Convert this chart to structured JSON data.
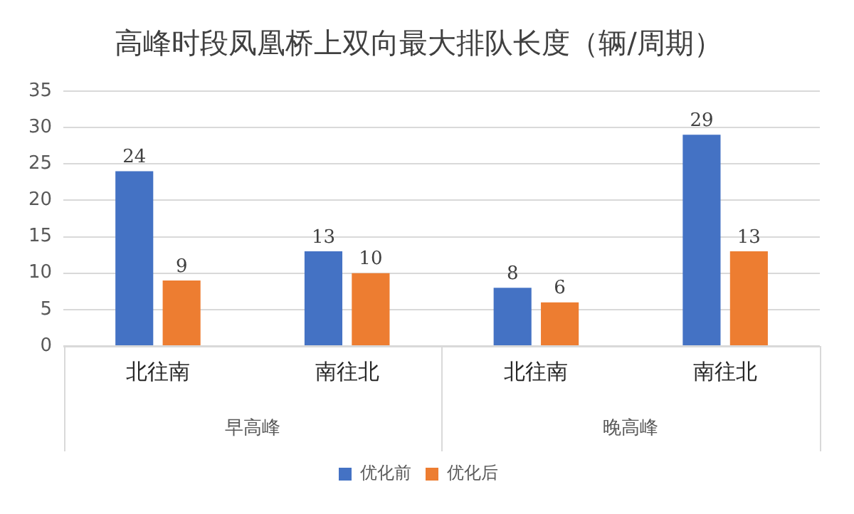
{
  "chart_data": {
    "type": "bar",
    "title": "高峰时段凤凰桥上双向最大排队长度（辆/周期）",
    "categories": [
      "北往南",
      "南往北",
      "北往南",
      "南往北"
    ],
    "series": [
      {
        "name": "优化前",
        "color": "#4472c4",
        "values": [
          24,
          13,
          8,
          29
        ]
      },
      {
        "name": "优化后",
        "color": "#ed7d31",
        "values": [
          9,
          10,
          6,
          13
        ]
      }
    ],
    "annotations": [
      "早高峰",
      "晚高峰"
    ],
    "ylim": [
      0,
      35
    ],
    "yticks": [
      0,
      5,
      10,
      15,
      20,
      25,
      30,
      35
    ],
    "grid": "y",
    "legend": "bottom",
    "data_labels": true
  }
}
